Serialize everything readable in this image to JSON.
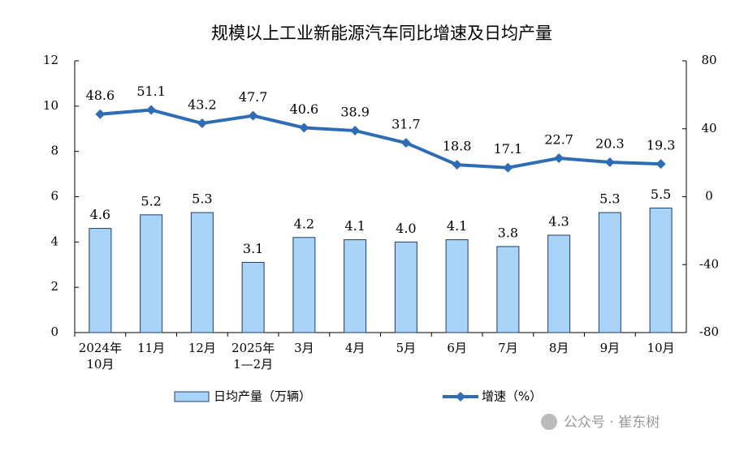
{
  "chart_data": {
    "type": "bar-line",
    "title": "规模以上工业新能源汽车同比增速及日均产量",
    "categories": [
      [
        "2024年",
        "10月"
      ],
      [
        "11月"
      ],
      [
        "12月"
      ],
      [
        "2025年",
        "1—2月"
      ],
      [
        "3月"
      ],
      [
        "4月"
      ],
      [
        "5月"
      ],
      [
        "6月"
      ],
      [
        "7月"
      ],
      [
        "8月"
      ],
      [
        "9月"
      ],
      [
        "10月"
      ]
    ],
    "series": [
      {
        "name": "日均产量（万辆）",
        "type": "bar",
        "color": "#a9d4f7",
        "edge": "#1f3f6e",
        "values": [
          4.6,
          5.2,
          5.3,
          3.1,
          4.2,
          4.1,
          4.0,
          4.1,
          3.8,
          4.3,
          5.3,
          5.5
        ],
        "value_labels": [
          "4.6",
          "5.2",
          "5.3",
          "3.1",
          "4.2",
          "4.1",
          "4.0",
          "4.1",
          "3.8",
          "4.3",
          "5.3",
          "5.5"
        ]
      },
      {
        "name": "增速（%）",
        "type": "line",
        "axis": "y2",
        "color": "#2e6cb5",
        "values": [
          48.6,
          51.1,
          43.2,
          47.7,
          40.6,
          38.9,
          31.7,
          18.8,
          17.1,
          22.7,
          20.3,
          19.3
        ]
      }
    ],
    "ylim": [
      0,
      12
    ],
    "yticks": [
      0,
      2,
      4,
      6,
      8,
      10,
      12
    ],
    "y2lim": [
      -80,
      80
    ],
    "y2ticks": [
      -80,
      -40,
      0,
      40,
      80
    ],
    "grid": false
  },
  "watermark": "公众号 · 崔东树"
}
